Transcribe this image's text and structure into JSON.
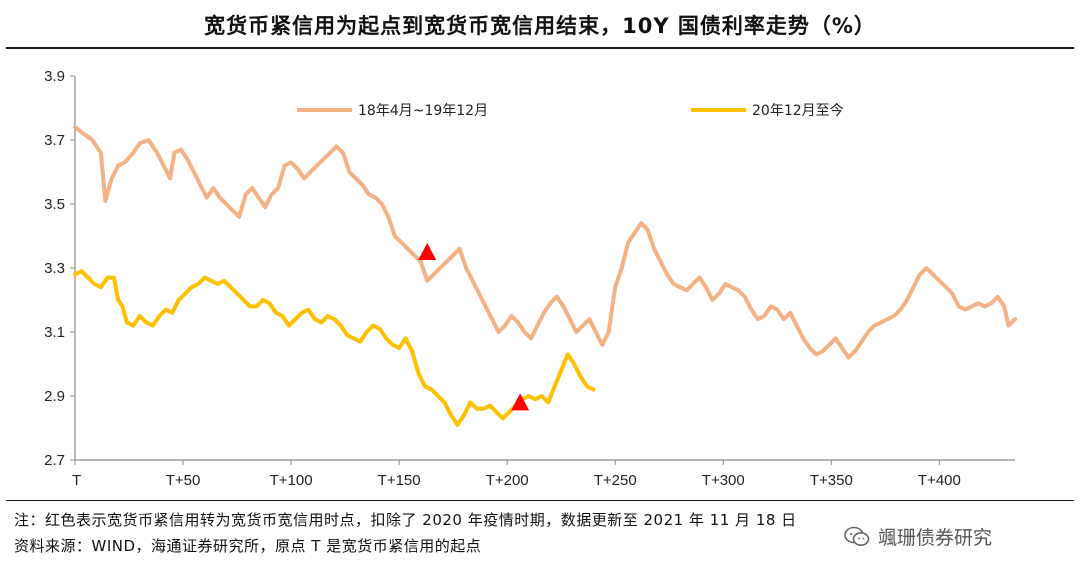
{
  "title": "宽货币紧信用为起点到宽货币宽信用结束，10Y 国债利率走势（%）",
  "notes": {
    "line1": "注：红色表示宽货币紧信用转为宽货币宽信用时点，扣除了 2020 年疫情时期，数据更新至 2021 年 11 月 18 日",
    "line2": "资料来源：WIND，海通证券研究所，原点 T 是宽货币紧信用的起点"
  },
  "watermark": {
    "text": "颯珊债券研究",
    "icon": "wechat-icon"
  },
  "chart_data": {
    "type": "line",
    "title": "宽货币紧信用为起点到宽货币宽信用结束，10Y 国债利率走势（%）",
    "xlabel": "",
    "ylabel": "",
    "xlim": [
      0,
      435
    ],
    "ylim": [
      2.7,
      3.9
    ],
    "yticks": [
      2.7,
      2.9,
      3.1,
      3.3,
      3.5,
      3.7,
      3.9
    ],
    "ytick_labels": [
      "2.7",
      "2.9",
      "3.1",
      "3.3",
      "3.5",
      "3.7",
      "3.9"
    ],
    "xticks": [
      0,
      50,
      100,
      150,
      200,
      250,
      300,
      350,
      400
    ],
    "xtick_labels": [
      "T",
      "T+50",
      "T+100",
      "T+150",
      "T+200",
      "T+250",
      "T+300",
      "T+350",
      "T+400"
    ],
    "grid": false,
    "legend_position": "top",
    "series": [
      {
        "name": "18年4月~19年12月",
        "color": "#F4B183",
        "x": [
          0,
          4,
          8,
          12,
          14,
          17,
          20,
          23,
          27,
          30,
          34,
          38,
          41,
          44,
          46,
          49,
          52,
          55,
          58,
          61,
          64,
          67,
          70,
          73,
          76,
          79,
          82,
          85,
          88,
          91,
          94,
          97,
          100,
          103,
          106,
          109,
          112,
          115,
          118,
          121,
          124,
          127,
          130,
          133,
          136,
          139,
          142,
          145,
          148,
          151,
          154,
          157,
          160,
          163,
          166,
          169,
          172,
          175,
          178,
          181,
          184,
          187,
          190,
          193,
          196,
          199,
          202,
          205,
          208,
          211,
          214,
          217,
          220,
          223,
          226,
          229,
          232,
          235,
          238,
          241,
          244,
          247,
          250,
          253,
          256,
          259,
          262,
          265,
          268,
          271,
          274,
          277,
          280,
          283,
          286,
          289,
          292,
          295,
          298,
          301,
          304,
          307,
          310,
          313,
          316,
          319,
          322,
          325,
          328,
          331,
          334,
          337,
          340,
          343,
          346,
          349,
          352,
          355,
          358,
          361,
          364,
          367,
          370,
          373,
          376,
          379,
          382,
          385,
          388,
          391,
          394,
          397,
          400,
          403,
          406,
          409,
          412,
          415,
          418,
          421,
          424,
          427,
          430,
          432,
          435
        ],
        "values": [
          3.74,
          3.72,
          3.7,
          3.66,
          3.51,
          3.58,
          3.62,
          3.63,
          3.66,
          3.69,
          3.7,
          3.66,
          3.62,
          3.58,
          3.66,
          3.67,
          3.64,
          3.6,
          3.56,
          3.52,
          3.55,
          3.52,
          3.5,
          3.48,
          3.46,
          3.53,
          3.55,
          3.52,
          3.49,
          3.53,
          3.55,
          3.62,
          3.63,
          3.61,
          3.58,
          3.6,
          3.62,
          3.64,
          3.66,
          3.68,
          3.66,
          3.6,
          3.58,
          3.56,
          3.53,
          3.52,
          3.5,
          3.46,
          3.4,
          3.38,
          3.36,
          3.34,
          3.32,
          3.26,
          3.28,
          3.3,
          3.32,
          3.34,
          3.36,
          3.3,
          3.26,
          3.22,
          3.18,
          3.14,
          3.1,
          3.12,
          3.15,
          3.13,
          3.1,
          3.08,
          3.12,
          3.16,
          3.19,
          3.21,
          3.18,
          3.14,
          3.1,
          3.12,
          3.14,
          3.1,
          3.06,
          3.1,
          3.24,
          3.3,
          3.38,
          3.41,
          3.44,
          3.42,
          3.36,
          3.32,
          3.28,
          3.25,
          3.24,
          3.23,
          3.25,
          3.27,
          3.24,
          3.2,
          3.22,
          3.25,
          3.24,
          3.23,
          3.21,
          3.17,
          3.14,
          3.15,
          3.18,
          3.17,
          3.14,
          3.16,
          3.12,
          3.08,
          3.05,
          3.03,
          3.04,
          3.06,
          3.08,
          3.05,
          3.02,
          3.04,
          3.07,
          3.1,
          3.12,
          3.13,
          3.14,
          3.15,
          3.17,
          3.2,
          3.24,
          3.28,
          3.3,
          3.28,
          3.26,
          3.24,
          3.22,
          3.18,
          3.17,
          3.18,
          3.19,
          3.18,
          3.19,
          3.21,
          3.18,
          3.12,
          3.14
        ]
      },
      {
        "name": "20年12月至今",
        "color": "#FFC000",
        "x": [
          0,
          3,
          6,
          9,
          12,
          15,
          18,
          20,
          22,
          24,
          27,
          30,
          33,
          36,
          39,
          42,
          45,
          48,
          51,
          54,
          57,
          60,
          63,
          66,
          69,
          72,
          75,
          78,
          81,
          84,
          87,
          90,
          93,
          96,
          99,
          102,
          105,
          108,
          111,
          114,
          117,
          120,
          123,
          126,
          129,
          132,
          135,
          138,
          141,
          144,
          147,
          150,
          153,
          156,
          159,
          162,
          165,
          168,
          171,
          174,
          177,
          180,
          183,
          186,
          189,
          192,
          195,
          198,
          201,
          204,
          207,
          210,
          213,
          216,
          219,
          222,
          225,
          228,
          231,
          234,
          237,
          240
        ],
        "values": [
          3.28,
          3.29,
          3.27,
          3.25,
          3.24,
          3.27,
          3.27,
          3.2,
          3.18,
          3.13,
          3.12,
          3.15,
          3.13,
          3.12,
          3.15,
          3.17,
          3.16,
          3.2,
          3.22,
          3.24,
          3.25,
          3.27,
          3.26,
          3.25,
          3.26,
          3.24,
          3.22,
          3.2,
          3.18,
          3.18,
          3.2,
          3.19,
          3.16,
          3.15,
          3.12,
          3.14,
          3.16,
          3.17,
          3.14,
          3.13,
          3.15,
          3.14,
          3.12,
          3.09,
          3.08,
          3.07,
          3.1,
          3.12,
          3.11,
          3.08,
          3.06,
          3.05,
          3.08,
          3.04,
          2.97,
          2.93,
          2.92,
          2.9,
          2.88,
          2.84,
          2.81,
          2.84,
          2.88,
          2.86,
          2.86,
          2.87,
          2.85,
          2.83,
          2.85,
          2.87,
          2.89,
          2.9,
          2.89,
          2.9,
          2.88,
          2.93,
          2.98,
          3.03,
          3.0,
          2.96,
          2.93,
          2.92
        ]
      }
    ],
    "markers": [
      {
        "series": "18年4月~19年12月",
        "x": 163,
        "y": 3.35,
        "shape": "triangle",
        "color": "#FF0000"
      },
      {
        "series": "20年12月至今",
        "x": 206,
        "y": 2.88,
        "shape": "triangle",
        "color": "#FF0000"
      }
    ]
  }
}
